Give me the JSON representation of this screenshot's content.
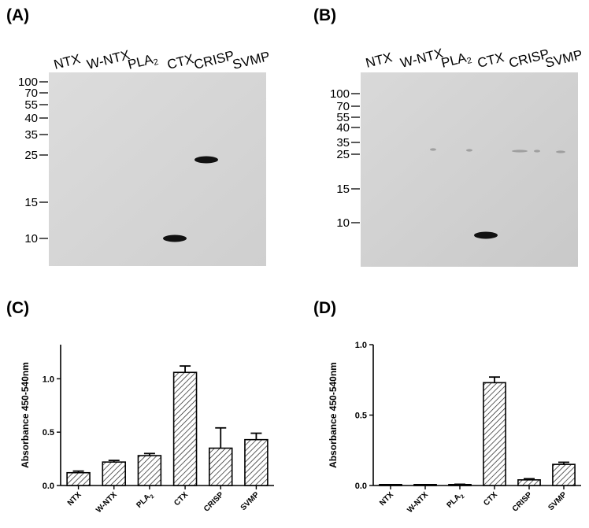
{
  "panels": [
    {
      "id": "A",
      "label": "(A)"
    },
    {
      "id": "B",
      "label": "(B)"
    },
    {
      "id": "C",
      "label": "(C)"
    },
    {
      "id": "D",
      "label": "(D)"
    }
  ],
  "blots": [
    {
      "id": "A",
      "lanes": [
        "NTX",
        "W-NTX",
        "PLA2",
        "CTX",
        "CRISP",
        "SVMP"
      ],
      "markers": [
        "100",
        "70",
        "55",
        "40",
        "35",
        "25",
        "15",
        "10"
      ],
      "bands": [
        {
          "lane": "CTX",
          "marker": "10"
        },
        {
          "lane": "CRISP",
          "marker": "25"
        }
      ]
    },
    {
      "id": "B",
      "lanes": [
        "NTX",
        "W-NTX",
        "PLA2",
        "CTX",
        "CRISP",
        "SVMP"
      ],
      "markers": [
        "100",
        "70",
        "55",
        "40",
        "35",
        "25",
        "15",
        "10"
      ],
      "bands": [
        {
          "lane": "CTX",
          "marker": "10"
        }
      ]
    }
  ],
  "chart_data": [
    {
      "type": "bar",
      "id": "C",
      "categories": [
        "NTX",
        "W-NTX",
        "PLA2",
        "CTX",
        "CRISP",
        "SVMP"
      ],
      "values": [
        0.12,
        0.22,
        0.28,
        1.06,
        0.35,
        0.43
      ],
      "errors": [
        0.015,
        0.015,
        0.02,
        0.06,
        0.19,
        0.06
      ],
      "ylabel": "Absorbance 450-540nm",
      "yticks": [
        "0.0",
        "0.5",
        "1.0"
      ],
      "ylim": [
        0,
        1.32
      ],
      "grid": false
    },
    {
      "type": "bar",
      "id": "D",
      "categories": [
        "NTX",
        "W-NTX",
        "PLA2",
        "CTX",
        "CRISP",
        "SVMP"
      ],
      "values": [
        0.002,
        0.004,
        0.005,
        0.73,
        0.04,
        0.15
      ],
      "errors": [
        0.002,
        0.002,
        0.004,
        0.04,
        0.008,
        0.015
      ],
      "ylabel": "Absorbance 450-540nm",
      "yticks": [
        "0.0",
        "0.5",
        "1.0"
      ],
      "ylim": [
        0,
        1.0
      ],
      "grid": false
    }
  ],
  "colors": {
    "bar_fill": "#ffffff",
    "hatch": "#1a1a1a",
    "blot_bg": "#d6d6d6",
    "band": "#111111"
  }
}
